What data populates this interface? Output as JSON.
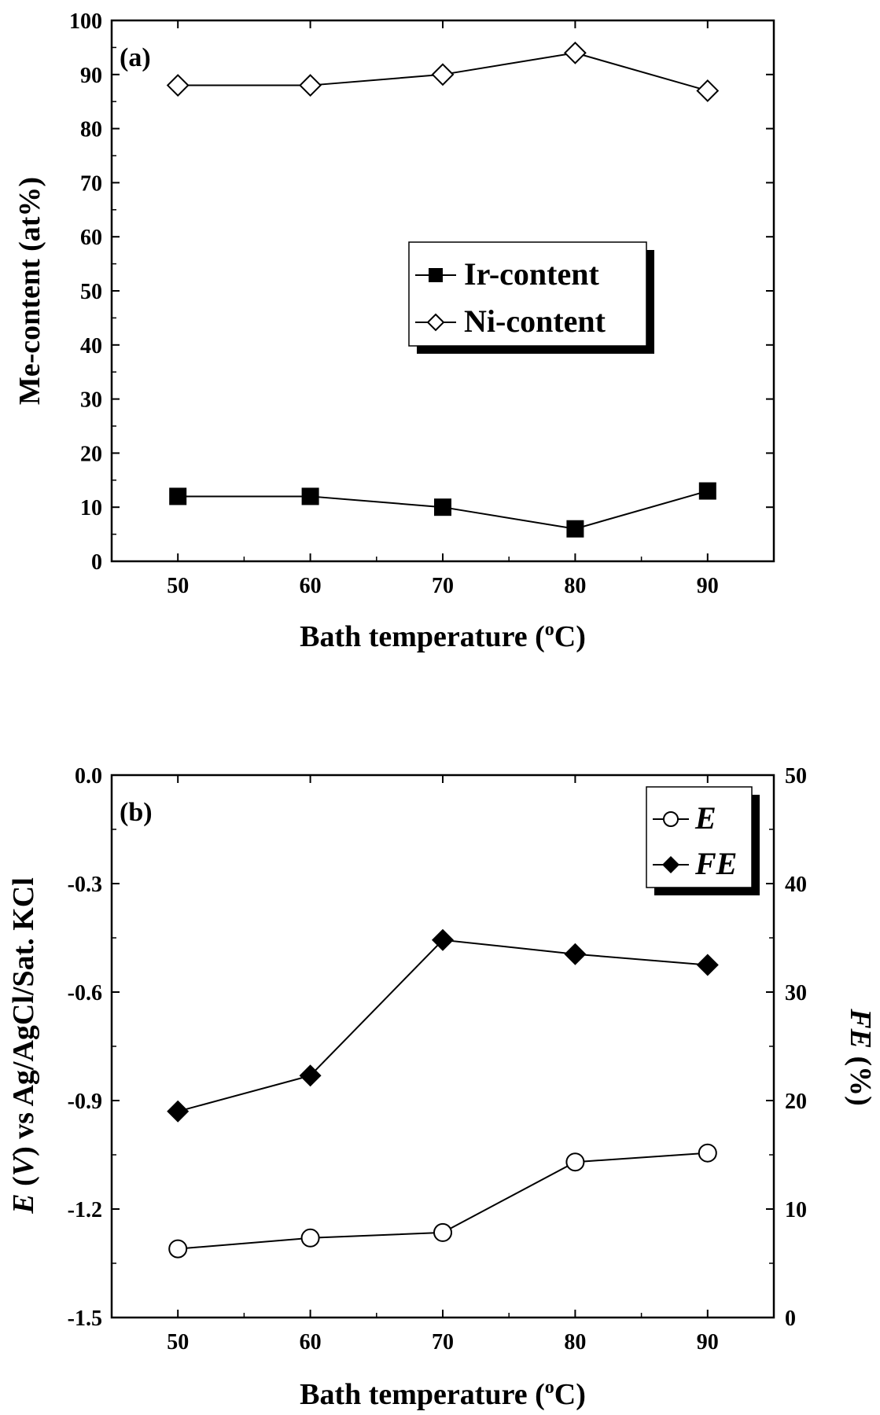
{
  "chart_data": [
    {
      "type": "line",
      "panel_label": "(a)",
      "xlabel_main": "Bath temperature (",
      "xlabel_sup": "o",
      "xlabel_end": "C)",
      "ylabel": "Me-content (at%)",
      "x": [
        50,
        60,
        70,
        80,
        90
      ],
      "xticks": [
        "50",
        "60",
        "70",
        "80",
        "90"
      ],
      "xlim": [
        45,
        95
      ],
      "ylim": [
        0,
        100
      ],
      "yticks": [
        "0",
        "10",
        "20",
        "30",
        "40",
        "50",
        "60",
        "70",
        "80",
        "90",
        "100"
      ],
      "legend_position": "center-right",
      "series": [
        {
          "name": "Ir-content",
          "values": [
            12,
            12,
            10,
            6,
            13
          ],
          "marker": "filled-square",
          "color": "#000000"
        },
        {
          "name": "Ni-content",
          "values": [
            88,
            88,
            90,
            94,
            87
          ],
          "marker": "open-diamond",
          "color": "#000000"
        }
      ]
    },
    {
      "type": "line",
      "panel_label": "(b)",
      "xlabel_main": "Bath temperature (",
      "xlabel_sup": "o",
      "xlabel_end": "C)",
      "ylabel_left_italic": "E",
      "ylabel_left_mid": " (",
      "ylabel_left_italic2": "V",
      "ylabel_left_rest": ") vs Ag/AgCl/Sat. KCl",
      "ylabel_right_italic": "FE",
      "ylabel_right_rest": " (%)",
      "x": [
        50,
        60,
        70,
        80,
        90
      ],
      "xticks": [
        "50",
        "60",
        "70",
        "80",
        "90"
      ],
      "xlim": [
        45,
        95
      ],
      "ylim_left": [
        -1.5,
        0.0
      ],
      "yticks_left": [
        "-1.5",
        "-1.2",
        "-0.9",
        "-0.6",
        "-0.3",
        "0.0"
      ],
      "ylim_right": [
        0,
        50
      ],
      "yticks_right": [
        "0",
        "10",
        "20",
        "30",
        "40",
        "50"
      ],
      "legend_position": "top-right",
      "series": [
        {
          "name": "E",
          "axis": "left",
          "values": [
            -1.31,
            -1.28,
            -1.265,
            -1.07,
            -1.045
          ],
          "marker": "open-circle",
          "color": "#000000"
        },
        {
          "name": "FE",
          "axis": "right",
          "values": [
            19.0,
            22.3,
            34.8,
            33.5,
            32.5
          ],
          "marker": "filled-diamond",
          "color": "#000000"
        }
      ]
    }
  ]
}
